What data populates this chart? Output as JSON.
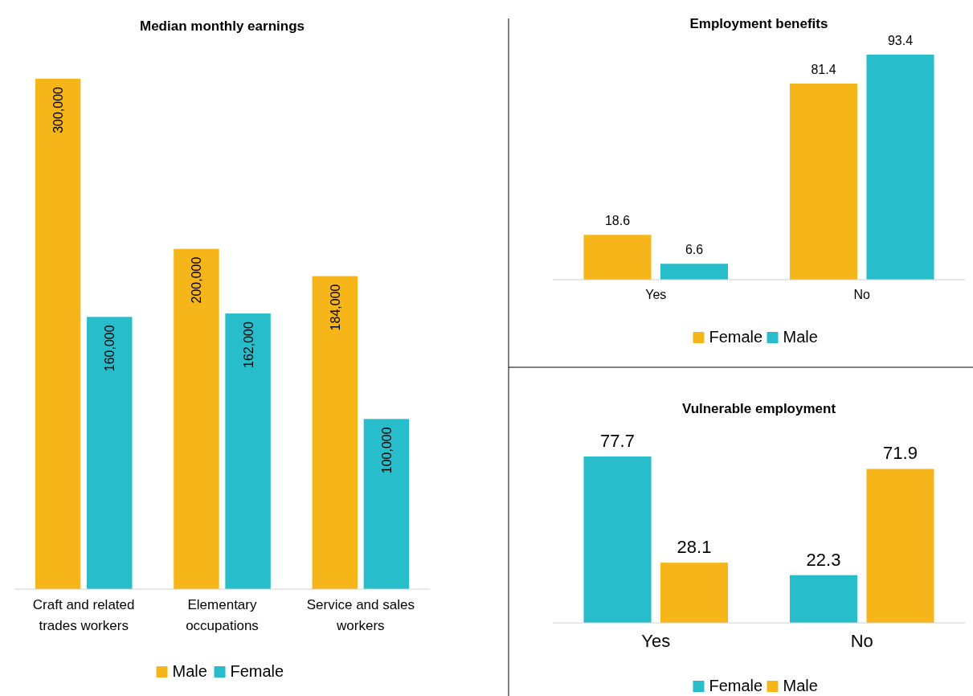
{
  "chart_data": [
    {
      "type": "bar",
      "title": "Median monthly earnings",
      "categories": [
        "Craft and related trades workers",
        "Elementary occupations",
        "Service and sales workers"
      ],
      "legend": "bottom",
      "series": [
        {
          "name": "Male",
          "color": "#f6b519",
          "values": [
            300000,
            200000,
            184000
          ],
          "value_labels": [
            "300,000",
            "200,000",
            "184,000"
          ]
        },
        {
          "name": "Female",
          "color": "#28bdca",
          "values": [
            160000,
            162000,
            100000
          ],
          "value_labels": [
            "160,000",
            "162,000",
            "100,000"
          ]
        }
      ]
    },
    {
      "type": "bar",
      "title": "Employment benefits",
      "categories": [
        "Yes",
        "No"
      ],
      "legend": "bottom",
      "data_labels": true,
      "series": [
        {
          "name": "Female",
          "color": "#f6b519",
          "values": [
            18.6,
            81.4
          ]
        },
        {
          "name": "Male",
          "color": "#28bdca",
          "values": [
            6.6,
            93.4
          ]
        }
      ]
    },
    {
      "type": "bar",
      "title": "Vulnerable employment",
      "categories": [
        "Yes",
        "No"
      ],
      "legend": "bottom",
      "data_labels": true,
      "series": [
        {
          "name": "Female",
          "color": "#28bdca",
          "values": [
            77.7,
            22.3
          ]
        },
        {
          "name": "Male",
          "color": "#f6b519",
          "values": [
            28.1,
            71.9
          ]
        }
      ]
    }
  ]
}
